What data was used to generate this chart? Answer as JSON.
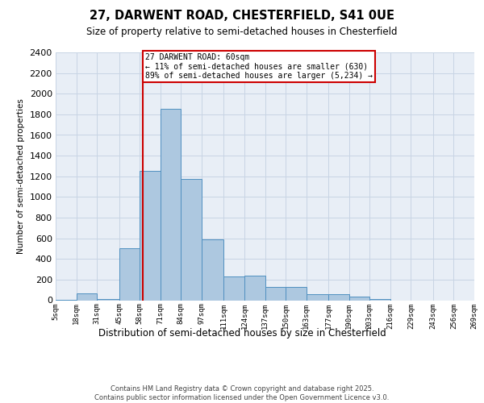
{
  "title": "27, DARWENT ROAD, CHESTERFIELD, S41 0UE",
  "subtitle": "Size of property relative to semi-detached houses in Chesterfield",
  "xlabel": "Distribution of semi-detached houses by size in Chesterfield",
  "ylabel": "Number of semi-detached properties",
  "footnote": "Contains HM Land Registry data © Crown copyright and database right 2025.\nContains public sector information licensed under the Open Government Licence v3.0.",
  "bin_edges": [
    5,
    18,
    31,
    45,
    58,
    71,
    84,
    97,
    111,
    124,
    137,
    150,
    163,
    177,
    190,
    203,
    216,
    229,
    243,
    256,
    269
  ],
  "bar_heights": [
    5,
    70,
    10,
    500,
    1250,
    1850,
    1175,
    590,
    230,
    235,
    130,
    130,
    55,
    55,
    35,
    10,
    0,
    0,
    0,
    0
  ],
  "bar_color": "#adc8e0",
  "bar_edge_color": "#5090c0",
  "property_size": 60,
  "property_line_color": "#cc0000",
  "annotation_text": "27 DARWENT ROAD: 60sqm\n← 11% of semi-detached houses are smaller (630)\n89% of semi-detached houses are larger (5,234) →",
  "annotation_box_color": "#ffffff",
  "annotation_box_edge_color": "#cc0000",
  "ylim": [
    0,
    2400
  ],
  "yticks": [
    0,
    200,
    400,
    600,
    800,
    1000,
    1200,
    1400,
    1600,
    1800,
    2000,
    2200,
    2400
  ],
  "grid_color": "#c8d4e4",
  "background_color": "#e8eef6",
  "tick_labels": [
    "5sqm",
    "18sqm",
    "31sqm",
    "45sqm",
    "58sqm",
    "71sqm",
    "84sqm",
    "97sqm",
    "111sqm",
    "124sqm",
    "137sqm",
    "150sqm",
    "163sqm",
    "177sqm",
    "190sqm",
    "203sqm",
    "216sqm",
    "229sqm",
    "243sqm",
    "256sqm",
    "269sqm"
  ]
}
